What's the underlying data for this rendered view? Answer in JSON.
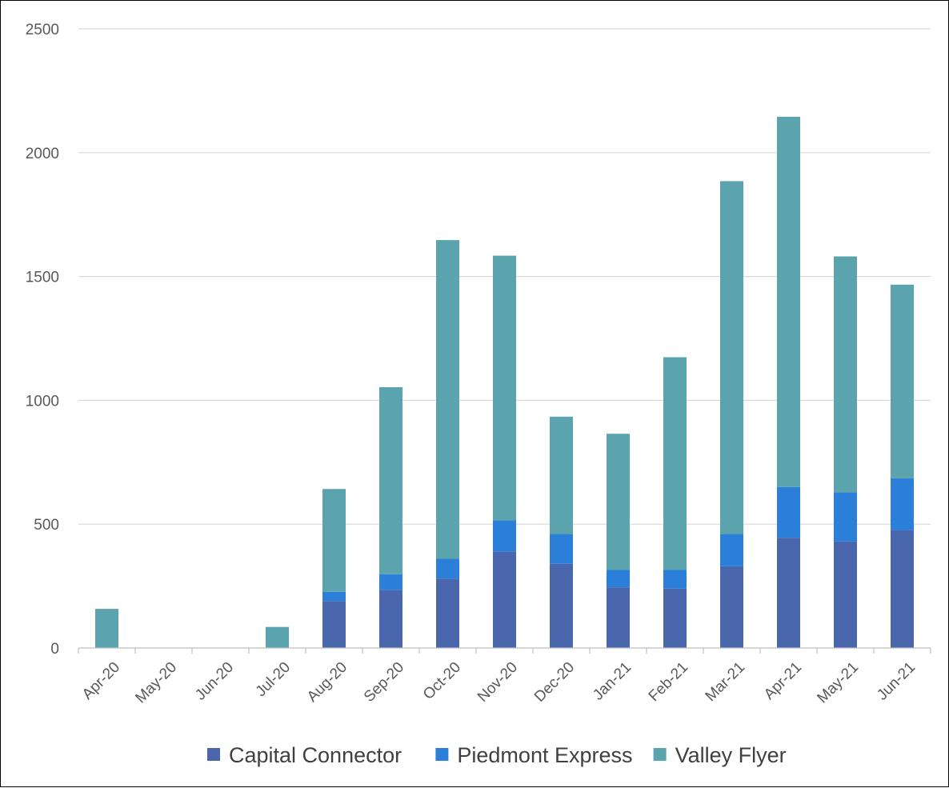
{
  "chart_data": {
    "type": "bar",
    "stacked": true,
    "categories": [
      "Apr-20",
      "May-20",
      "Jun-20",
      "Jul-20",
      "Aug-20",
      "Sep-20",
      "Oct-20",
      "Nov-20",
      "Dec-20",
      "Jan-21",
      "Feb-21",
      "Mar-21",
      "Apr-21",
      "May-21",
      "Jun-21"
    ],
    "series": [
      {
        "name": "Capital Connector",
        "color": "#4a66ac",
        "values": [
          0,
          0,
          0,
          0,
          190,
          235,
          280,
          390,
          340,
          245,
          240,
          330,
          445,
          430,
          475
        ]
      },
      {
        "name": "Piedmont Express",
        "color": "#2b7fd8",
        "values": [
          0,
          0,
          0,
          0,
          37,
          63,
          80,
          125,
          120,
          70,
          75,
          130,
          205,
          198,
          210
        ]
      },
      {
        "name": "Valley Flyer",
        "color": "#5ba4ae",
        "values": [
          158,
          0,
          0,
          85,
          415,
          755,
          1287,
          1069,
          474,
          550,
          859,
          1425,
          1495,
          953,
          782
        ]
      }
    ],
    "ylim": [
      0,
      2500
    ],
    "yticks": [
      0,
      500,
      1000,
      1500,
      2000,
      2500
    ],
    "grid": true,
    "legend_position": "bottom",
    "title": "",
    "xlabel": "",
    "ylabel": ""
  }
}
